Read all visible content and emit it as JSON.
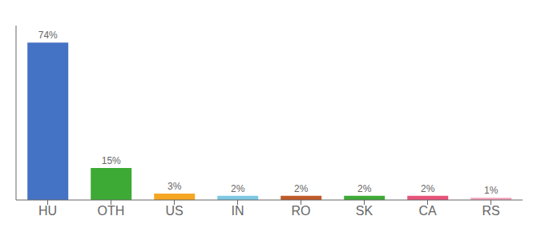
{
  "chart_data": {
    "type": "bar",
    "categories": [
      "HU",
      "OTH",
      "US",
      "IN",
      "RO",
      "SK",
      "CA",
      "RS"
    ],
    "values": [
      74,
      15,
      3,
      2,
      2,
      2,
      2,
      1
    ],
    "value_labels": [
      "74%",
      "15%",
      "3%",
      "2%",
      "2%",
      "2%",
      "2%",
      "1%"
    ],
    "colors": [
      "#4472C4",
      "#3DAA35",
      "#F5A623",
      "#7EC8E3",
      "#C05A28",
      "#3DAA35",
      "#E8537A",
      "#F5A0B8"
    ],
    "ylim": [
      0,
      82
    ],
    "data_labels": true,
    "tick_labels": "x",
    "grid": false
  }
}
